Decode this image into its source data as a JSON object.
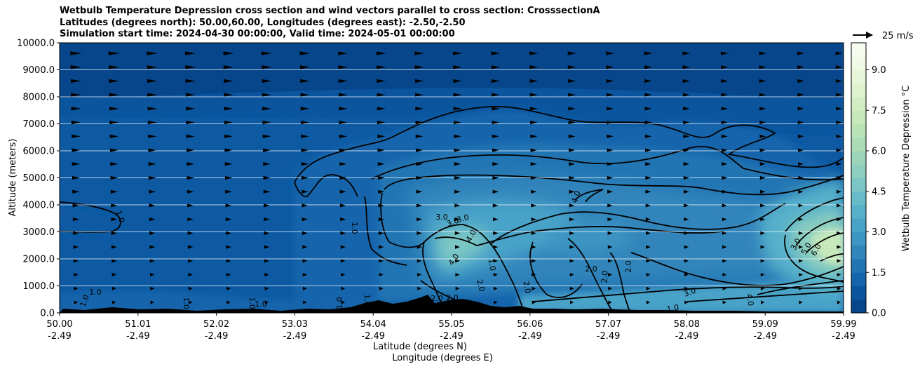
{
  "chart_data": {
    "type": "contour",
    "title": [
      "Wetbulb Temperature Depression cross section and wind vectors parallel to cross section: CrosssectionA",
      "Latitudes (degrees north): 50.00,60.00, Longitudes (degrees east): -2.50,-2.50",
      "Simulation start time: 2024-04-30 00:00:00, Valid time: 2024-05-01 00:00:00"
    ],
    "ylabel": "Altitude (meters)",
    "xlabel_lat": "Latitude (degrees N)",
    "xlabel_lon": "Longitude (degrees E)",
    "x_ticks_lat": [
      "50.00",
      "51.01",
      "52.02",
      "53.03",
      "54.04",
      "55.05",
      "56.06",
      "57.07",
      "58.08",
      "59.09",
      "59.99"
    ],
    "x_ticks_lon": [
      "-2.49",
      "-2.49",
      "-2.49",
      "-2.49",
      "-2.49",
      "-2.49",
      "-2.49",
      "-2.49",
      "-2.49",
      "-2.49",
      "-2.49"
    ],
    "y_ticks": [
      "0.0",
      "1000.0",
      "2000.0",
      "3000.0",
      "4000.0",
      "5000.0",
      "6000.0",
      "7000.0",
      "8000.0",
      "9000.0",
      "10000.0"
    ],
    "xlim": [
      50.0,
      59.99
    ],
    "ylim": [
      0,
      10000
    ],
    "grid": "horizontal",
    "colorbar": {
      "label": "Wetbulb Temperature Depression °C",
      "ticks": [
        "0.0",
        "1.5",
        "3.0",
        "4.5",
        "6.0",
        "7.5",
        "9.0"
      ],
      "range": [
        0,
        10
      ],
      "levels": 20,
      "colors": [
        "#08468b",
        "#0b559f",
        "#1465ac",
        "#2175b3",
        "#3185bb",
        "#3c95c2",
        "#49a3c8",
        "#57b0ca",
        "#68bcc9",
        "#7bc7c5",
        "#8dcfbf",
        "#9dd5ba",
        "#abdcb6",
        "#b9e2b6",
        "#c6e8bb",
        "#d2edc3",
        "#ddf2cd",
        "#e7f6d8",
        "#f0f9e5",
        "#f7fcf0"
      ]
    },
    "wind_key": {
      "label": "25 m/s",
      "speed": 25
    },
    "contour_labels": [
      "1.0",
      "1.0",
      "1.0",
      "1.0",
      "1.0",
      "1.0",
      "1.0",
      "1.0",
      "1.0",
      "3.0",
      "3.0",
      "3.0",
      "4.0",
      "4.0",
      "1.0",
      "2.0",
      "2.0",
      "2.0",
      "2.0",
      "2.0",
      "4.0",
      "3.0",
      "4.0",
      "3.0",
      "5.0",
      "6.0",
      "1.0",
      "2.0",
      "2.0"
    ],
    "peak_region": {
      "lat": 59.9,
      "altitude": 2300,
      "value": 7.5
    }
  }
}
